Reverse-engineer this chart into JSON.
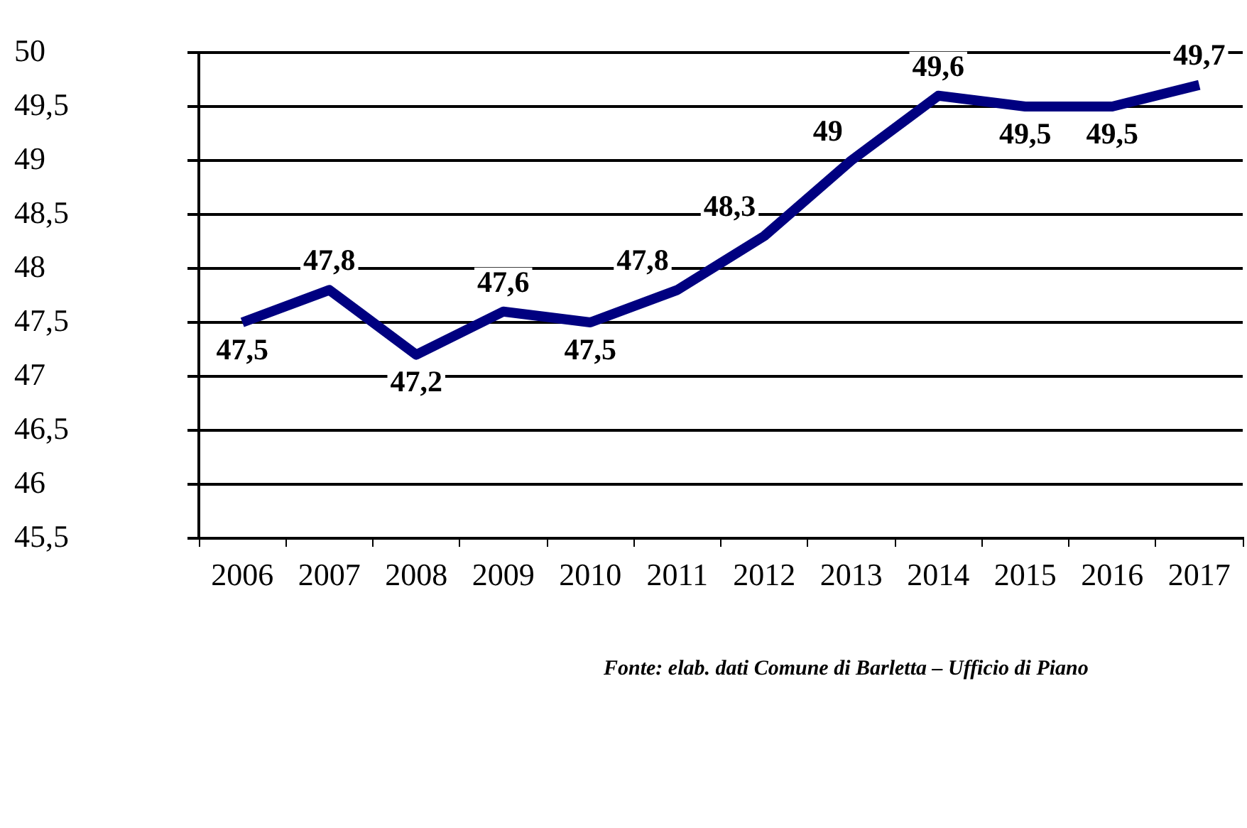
{
  "chart_data": {
    "type": "line",
    "categories": [
      "2006",
      "2007",
      "2008",
      "2009",
      "2010",
      "2011",
      "2012",
      "2013",
      "2014",
      "2015",
      "2016",
      "2017"
    ],
    "series": [
      {
        "color": "#000080",
        "values": [
          47.5,
          47.8,
          47.2,
          47.6,
          47.5,
          47.8,
          48.3,
          49,
          49.6,
          49.5,
          49.5,
          49.7
        ],
        "value_labels": [
          "47,5",
          "47,8",
          "47,2",
          "47,6",
          "47,5",
          "47,8",
          "48,3",
          "49",
          "49,6",
          "49,5",
          "49,5",
          "49,7"
        ]
      }
    ],
    "ylim": [
      45.5,
      50
    ],
    "yticks": [
      {
        "value": 45.5,
        "label": "45,5"
      },
      46,
      {
        "value": 46.5,
        "label": "46,5"
      },
      47,
      {
        "value": 47.5,
        "label": "47,5"
      },
      48,
      {
        "value": 48.5,
        "label": "48,5"
      },
      49,
      {
        "value": 49.5,
        "label": "49,5"
      },
      50
    ],
    "grid": "y",
    "legend": false,
    "marker": "none",
    "line_style": "solid",
    "annotations": [
      "Fonte: elab. dati Comune di Barletta – Ufficio di Piano"
    ]
  }
}
